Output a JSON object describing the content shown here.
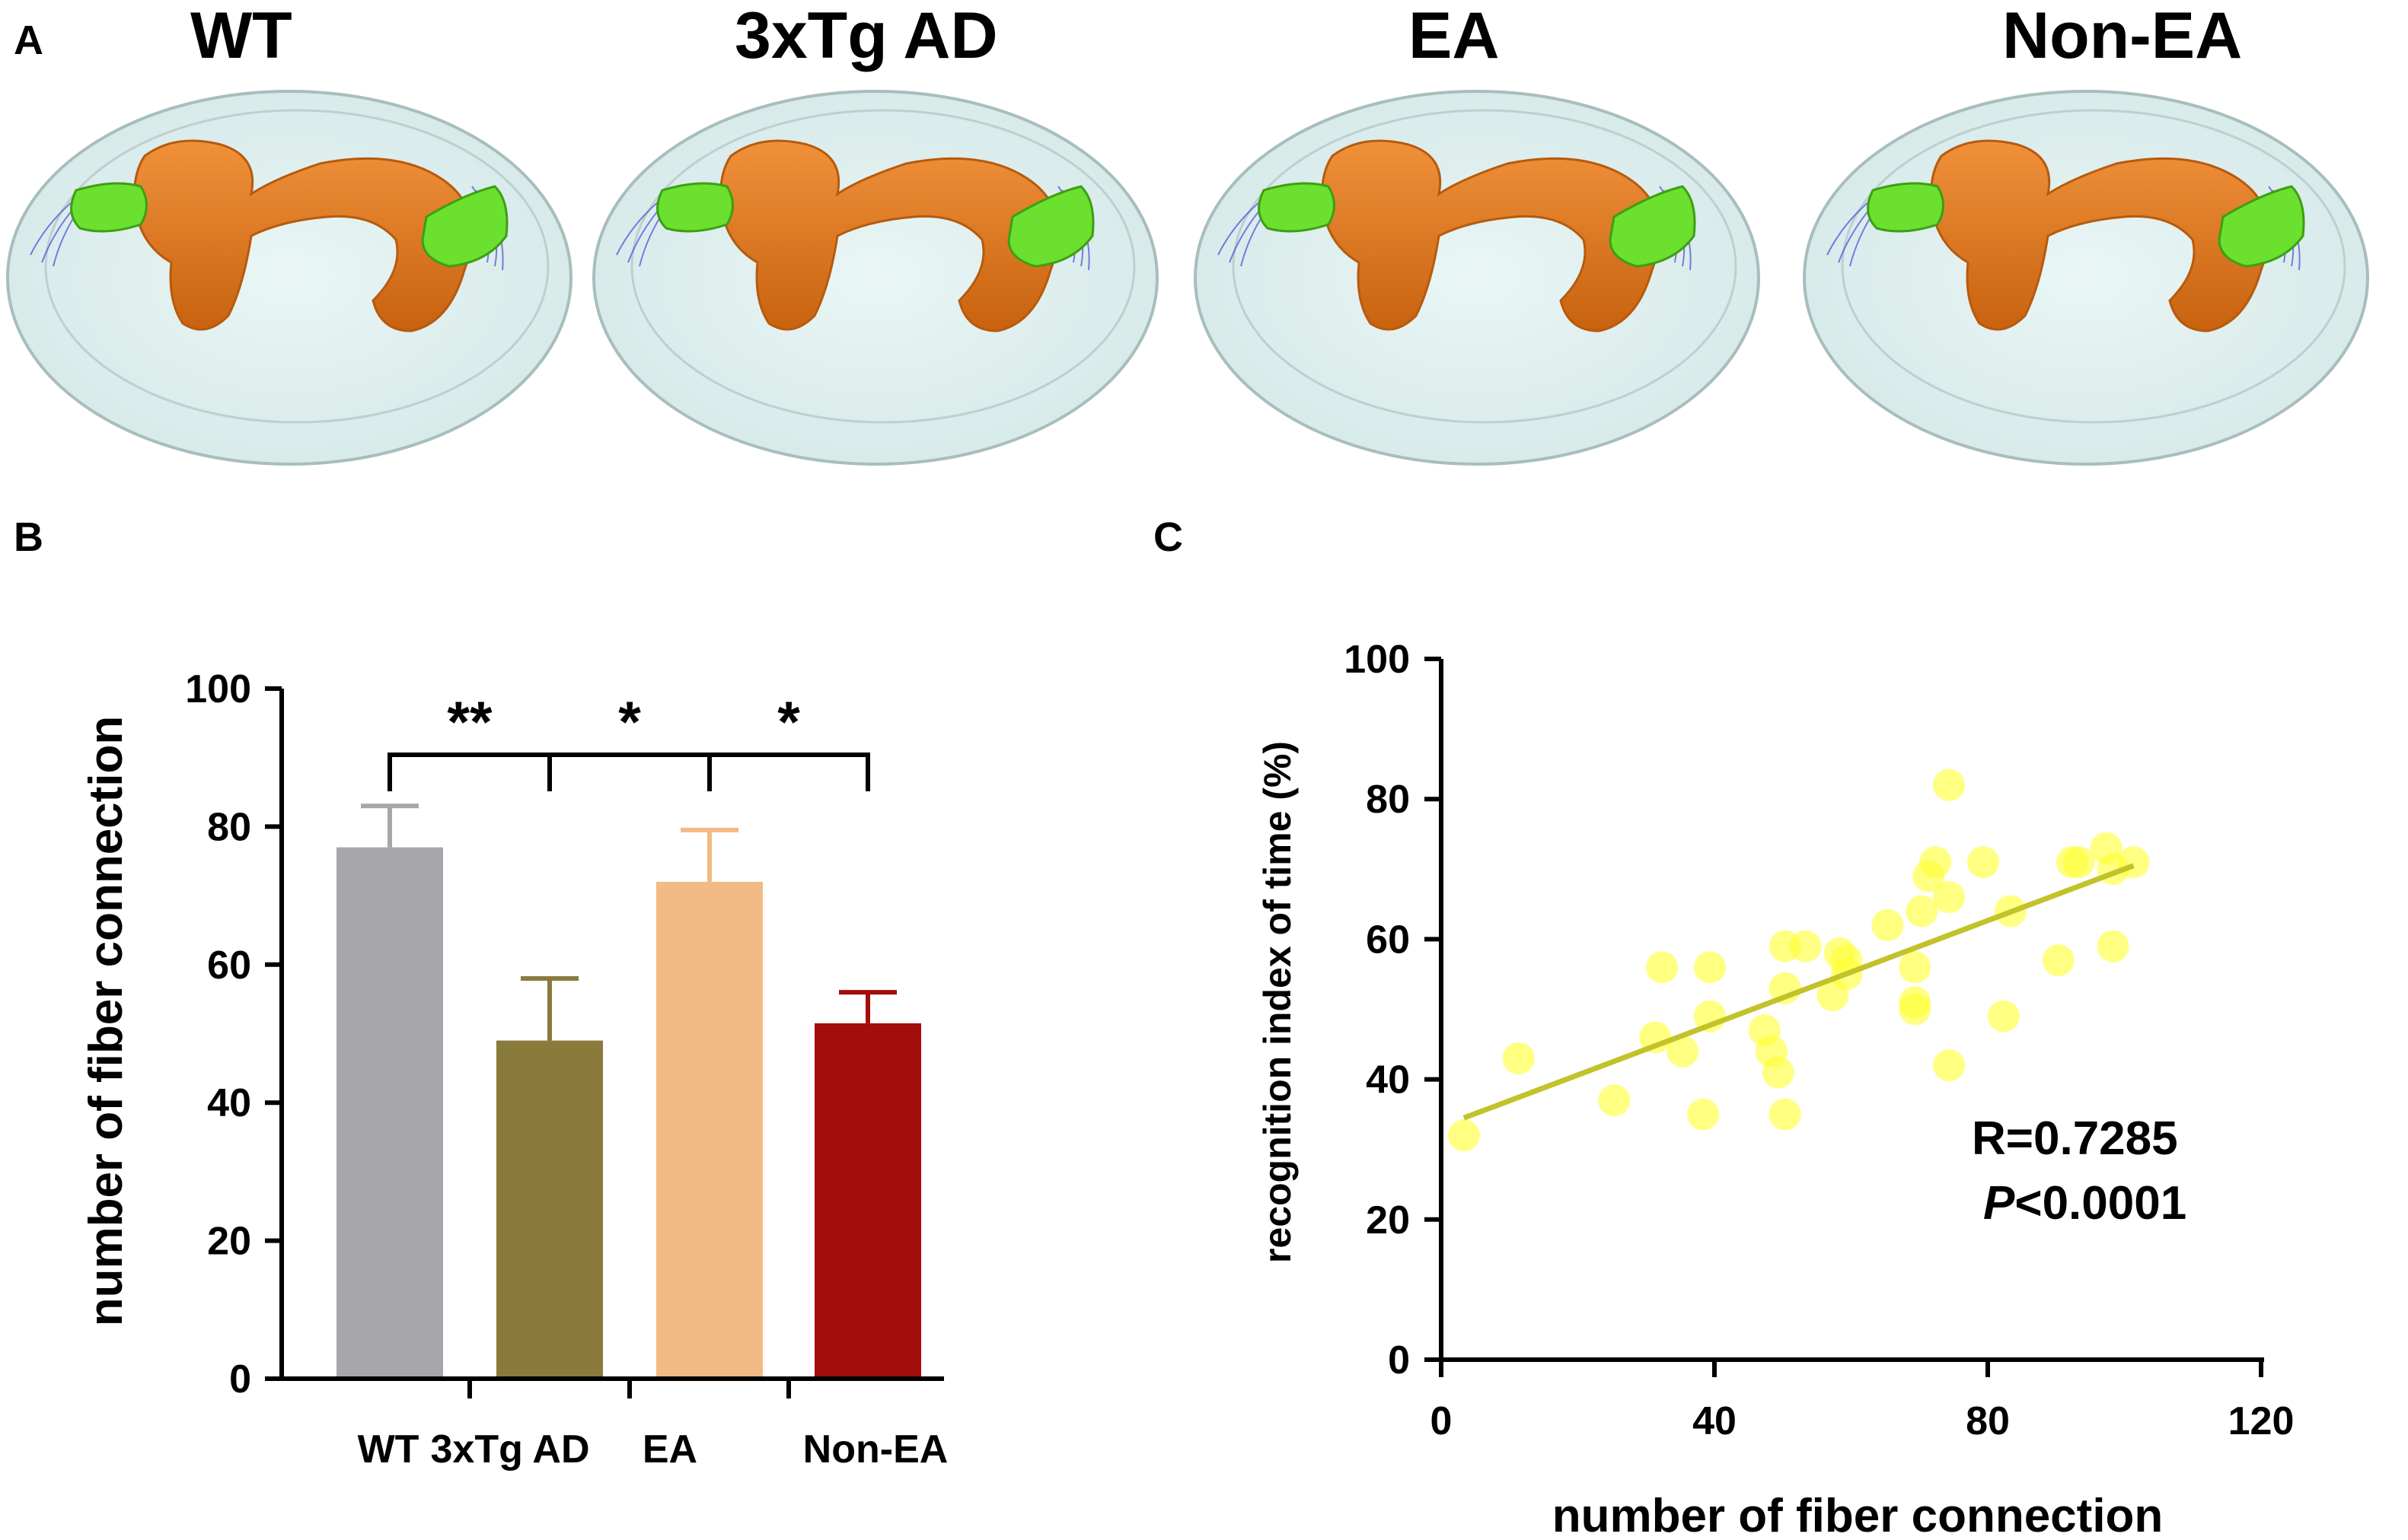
{
  "panels": {
    "a": "A",
    "b": "B",
    "c": "C"
  },
  "panel_a": {
    "titles": [
      "WT",
      "3xTg AD",
      "EA",
      "Non-EA"
    ]
  },
  "colors": {
    "wt": "#A7A6AB",
    "tg": "#8A7B3D",
    "ea": "#F2BA84",
    "nonea": "#A30D0B",
    "scatter_point": "#FFFF33",
    "fit_line": "#C2C22A",
    "brain_shell": "#DCEFEE",
    "brain_edge": "#9FB7B6",
    "ventricle": "#E57A1C",
    "ventricle_dark": "#B75A0E",
    "green_region": "#6BE02E",
    "green_dark": "#3E9E14",
    "fiber": "#4A4ADD"
  },
  "chart_data": [
    {
      "type": "bar",
      "panel": "B",
      "categories": [
        "WT",
        "3xTg AD",
        "EA",
        "Non-EA"
      ],
      "values": [
        77,
        49,
        72,
        51.5
      ],
      "errors": [
        6,
        9,
        7.5,
        4.5
      ],
      "ylabel": "number of fiber connection",
      "ylim": [
        0,
        100
      ],
      "yticks": [
        0,
        20,
        40,
        60,
        80,
        100
      ],
      "significance": [
        {
          "from": 0,
          "to": 1,
          "label": "**"
        },
        {
          "from": 1,
          "to": 2,
          "label": "*"
        },
        {
          "from": 2,
          "to": 3,
          "label": "*"
        }
      ]
    },
    {
      "type": "scatter",
      "panel": "C",
      "xlabel": "number of fiber connection",
      "ylabel": "recognition index of time (%)",
      "xlim": [
        0,
        120
      ],
      "ylim": [
        0,
        100
      ],
      "xticks": [
        0,
        40,
        80,
        120
      ],
      "yticks": [
        0,
        20,
        40,
        60,
        80,
        100
      ],
      "points": [
        [
          4,
          32
        ],
        [
          12,
          43
        ],
        [
          26,
          37
        ],
        [
          32,
          46
        ],
        [
          33,
          56
        ],
        [
          36,
          44
        ],
        [
          39,
          35
        ],
        [
          40,
          56
        ],
        [
          40,
          49
        ],
        [
          48,
          47
        ],
        [
          49,
          44
        ],
        [
          50,
          41
        ],
        [
          51,
          35
        ],
        [
          51,
          53
        ],
        [
          51,
          59
        ],
        [
          54,
          59
        ],
        [
          58,
          52
        ],
        [
          59,
          58
        ],
        [
          60,
          55
        ],
        [
          66,
          62
        ],
        [
          70,
          51
        ],
        [
          70,
          50
        ],
        [
          70,
          56
        ],
        [
          71,
          64
        ],
        [
          72,
          69
        ],
        [
          73,
          71
        ],
        [
          75,
          82
        ],
        [
          75,
          66
        ],
        [
          75,
          42
        ],
        [
          80,
          71
        ],
        [
          83,
          49
        ],
        [
          84,
          64
        ],
        [
          91,
          57
        ],
        [
          93,
          71
        ],
        [
          94,
          71
        ],
        [
          98,
          73
        ],
        [
          99,
          59
        ],
        [
          99,
          70
        ],
        [
          102,
          71
        ],
        [
          60,
          57
        ]
      ],
      "fit": {
        "x": [
          4,
          102
        ],
        "y": [
          34.5,
          70.5
        ]
      },
      "stats": {
        "r_text": "R=0.7285",
        "p_symbol": "P",
        "p_text": "<0.0001"
      }
    }
  ]
}
